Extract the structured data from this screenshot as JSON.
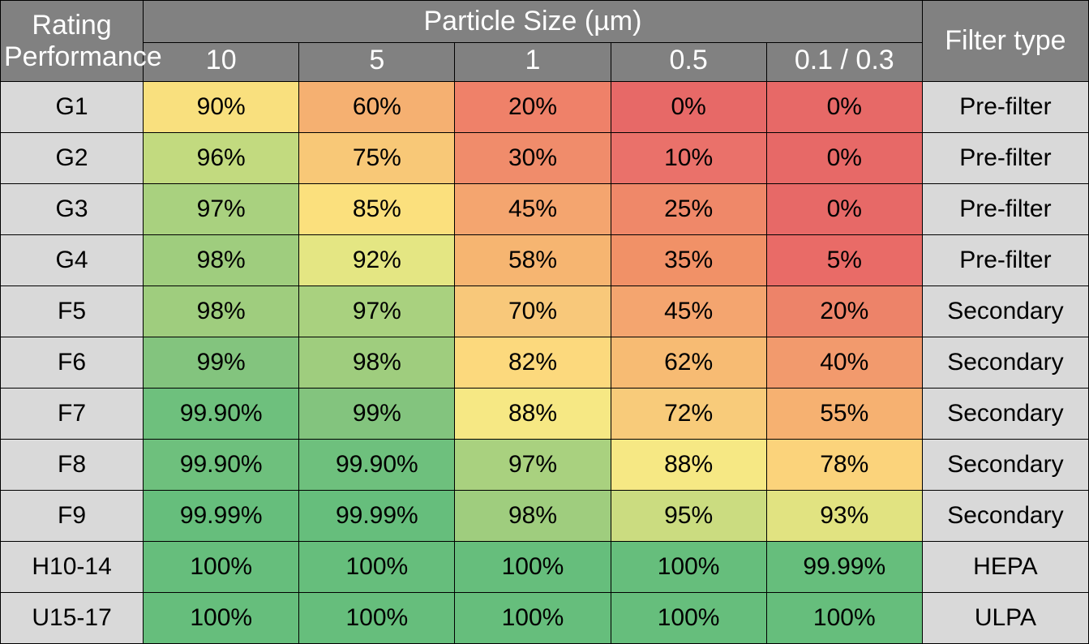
{
  "header": {
    "rating_label": "Rating Performance",
    "particle_size_label": "Particle Size (µm)",
    "filter_type_label": "Filter type",
    "sizes": [
      "10",
      "5",
      "1",
      "0.5",
      "0.1 / 0.3"
    ]
  },
  "colors": {
    "header_bg": "#818181",
    "header_fg": "#ffffff",
    "rating_bg": "#d9d9d9",
    "border": "#000000"
  },
  "rows": [
    {
      "rating": "G1",
      "values": [
        "90%",
        "60%",
        "20%",
        "0%",
        "0%"
      ],
      "cell_colors": [
        "#f9e07e",
        "#f5b071",
        "#ef8169",
        "#e76967",
        "#e76967"
      ],
      "filter_type": "Pre-filter"
    },
    {
      "rating": "G2",
      "values": [
        "96%",
        "75%",
        "30%",
        "10%",
        "0%"
      ],
      "cell_colors": [
        "#c2da7f",
        "#f8c877",
        "#f08c6b",
        "#ea716a",
        "#e76967"
      ],
      "filter_type": "Pre-filter"
    },
    {
      "rating": "G3",
      "values": [
        "97%",
        "85%",
        "45%",
        "25%",
        "0%"
      ],
      "cell_colors": [
        "#a9d17f",
        "#fbe07d",
        "#f4a56f",
        "#ef8869",
        "#e76967"
      ],
      "filter_type": "Pre-filter"
    },
    {
      "rating": "G4",
      "values": [
        "98%",
        "92%",
        "58%",
        "35%",
        "5%"
      ],
      "cell_colors": [
        "#9fcd7e",
        "#e4e683",
        "#f6b571",
        "#f19167",
        "#e96b67"
      ],
      "filter_type": "Pre-filter"
    },
    {
      "rating": "F5",
      "values": [
        "98%",
        "97%",
        "70%",
        "45%",
        "20%"
      ],
      "cell_colors": [
        "#9fcd7e",
        "#a9d17f",
        "#f8c87a",
        "#f4a56f",
        "#ed8369"
      ],
      "filter_type": "Secondary"
    },
    {
      "rating": "F6",
      "values": [
        "99%",
        "98%",
        "82%",
        "62%",
        "40%"
      ],
      "cell_colors": [
        "#83C47E",
        "#9fcd7e",
        "#fcd97d",
        "#f7bb73",
        "#f29a6d"
      ],
      "filter_type": "Secondary"
    },
    {
      "rating": "F7",
      "values": [
        "99.90%",
        "99%",
        "88%",
        "72%",
        "55%"
      ],
      "cell_colors": [
        "#6ec07d",
        "#83C47E",
        "#f6e884",
        "#f8cb7a",
        "#f6b171"
      ],
      "filter_type": "Secondary"
    },
    {
      "rating": "F8",
      "values": [
        "99.90%",
        "99.90%",
        "97%",
        "88%",
        "78%"
      ],
      "cell_colors": [
        "#6ec07d",
        "#6ec07d",
        "#a9d17f",
        "#f6e884",
        "#fbd37b"
      ],
      "filter_type": "Secondary"
    },
    {
      "rating": "F9",
      "values": [
        "99.99%",
        "99.99%",
        "98%",
        "95%",
        "93%"
      ],
      "cell_colors": [
        "#66be7c",
        "#66be7c",
        "#9fcd7e",
        "#cbdc80",
        "#e1e381"
      ],
      "filter_type": "Secondary"
    },
    {
      "rating": "H10-14",
      "values": [
        "100%",
        "100%",
        "100%",
        "100%",
        "99.99%"
      ],
      "cell_colors": [
        "#66be7c",
        "#66be7c",
        "#66be7c",
        "#66be7c",
        "#66be7c"
      ],
      "filter_type": "HEPA"
    },
    {
      "rating": "U15-17",
      "values": [
        "100%",
        "100%",
        "100%",
        "100%",
        "100%"
      ],
      "cell_colors": [
        "#66be7c",
        "#66be7c",
        "#66be7c",
        "#66be7c",
        "#66be7c"
      ],
      "filter_type": "ULPA"
    }
  ],
  "fonts": {
    "header_size_pt": 26,
    "body_size_pt": 22
  }
}
